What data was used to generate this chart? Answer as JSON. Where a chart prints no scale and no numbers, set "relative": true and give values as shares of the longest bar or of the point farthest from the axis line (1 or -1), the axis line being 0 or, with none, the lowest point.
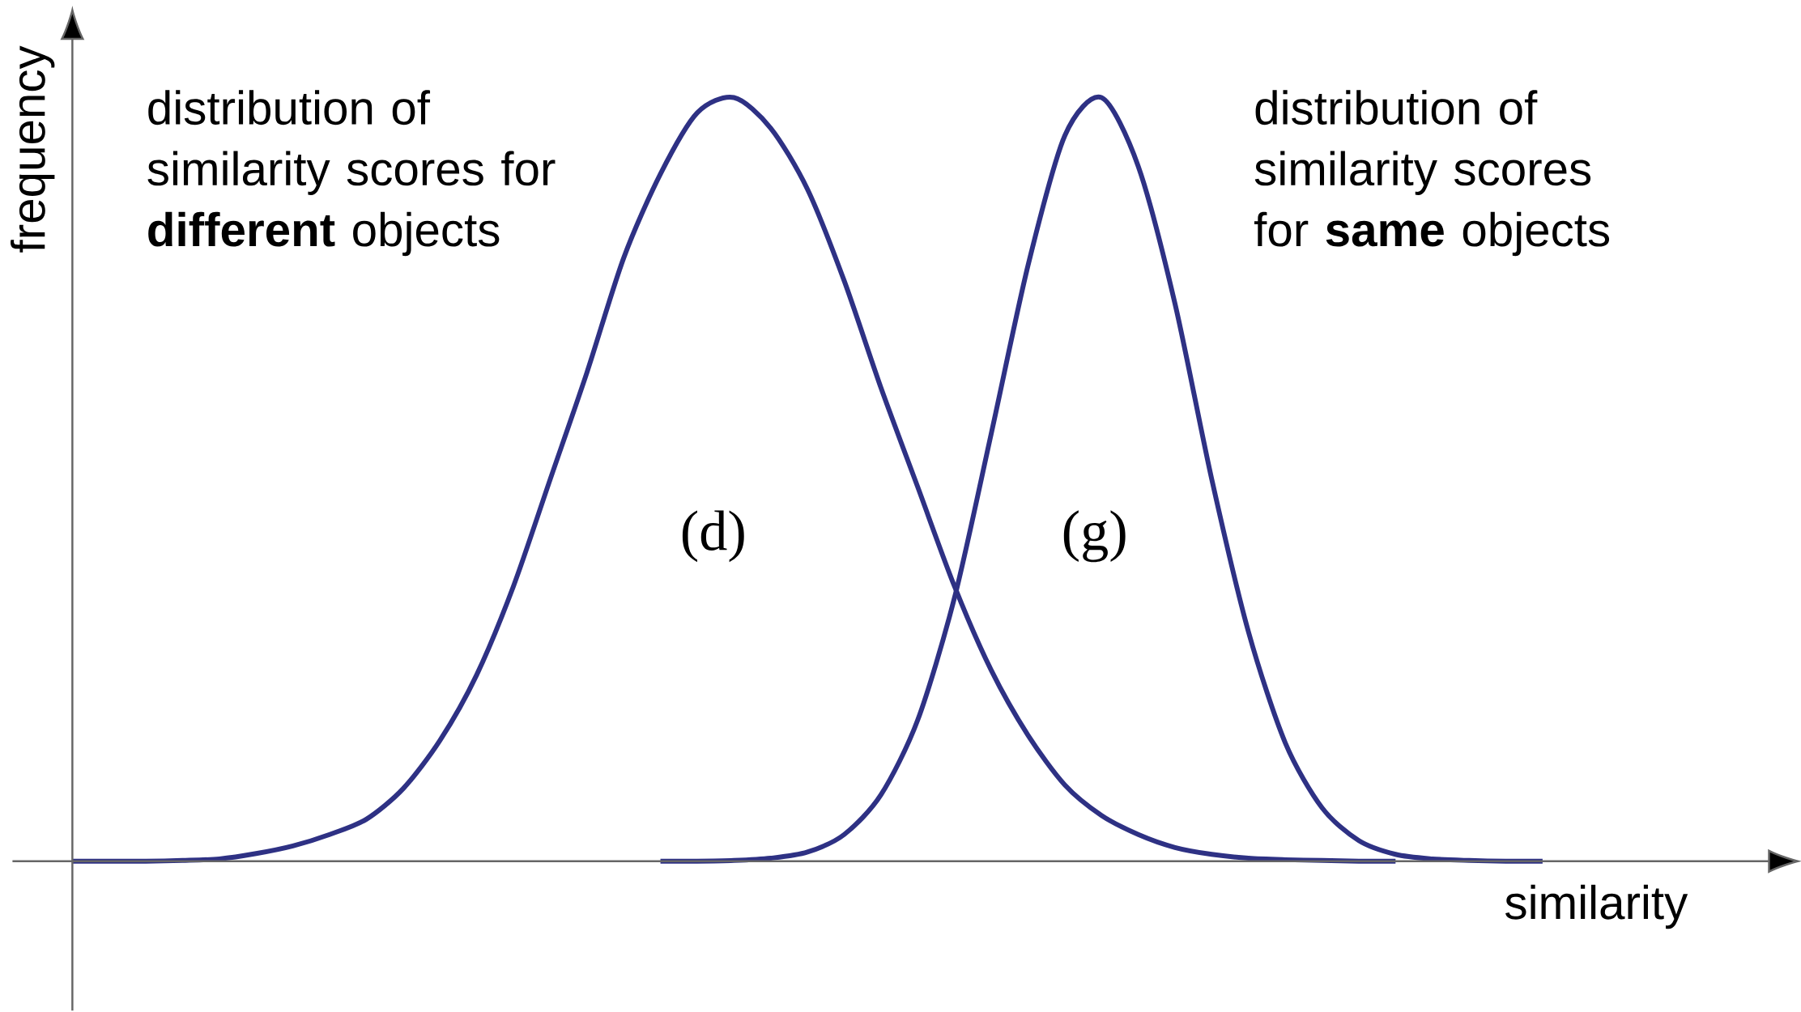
{
  "chart_data": {
    "type": "line",
    "relative": true,
    "xlabel": "similarity",
    "ylabel": "frequency",
    "legend": false,
    "categories": [
      null,
      null,
      null,
      null,
      null,
      null,
      null,
      null,
      null,
      null,
      null,
      null,
      null,
      null,
      null,
      null,
      null,
      null,
      null,
      null,
      null,
      null,
      null,
      null,
      null,
      null,
      null,
      null,
      null,
      null,
      null,
      null,
      null,
      null,
      null,
      null,
      null,
      null,
      null,
      null,
      null
    ],
    "series": [
      {
        "name": "(d)",
        "color": "#2e3184",
        "values": [
          0,
          0,
          0,
          0.001,
          0.003,
          0.01,
          0.02,
          0.035,
          0.055,
          0.095,
          0.158,
          0.244,
          0.36,
          0.5,
          0.64,
          0.79,
          0.9,
          0.98,
          1,
          0.96,
          0.88,
          0.76,
          0.62,
          0.49,
          0.36,
          0.25,
          0.165,
          0.1,
          0.06,
          0.035,
          0.018,
          0.009,
          0.004,
          0.002,
          0.001,
          0,
          0,
          null,
          null,
          null,
          null
        ]
      },
      {
        "name": "(g)",
        "color": "#2e3184",
        "values": [
          null,
          null,
          null,
          null,
          null,
          null,
          null,
          null,
          null,
          null,
          null,
          null,
          null,
          null,
          null,
          null,
          0,
          0,
          0.001,
          0.004,
          0.012,
          0.035,
          0.087,
          0.185,
          0.345,
          0.56,
          0.78,
          0.95,
          1,
          0.91,
          0.73,
          0.5,
          0.3,
          0.155,
          0.07,
          0.027,
          0.009,
          0.003,
          0.001,
          0,
          0
        ]
      }
    ],
    "annotations": [
      "distribution of similarity scores for **different** objects",
      "distribution of similarity scores for **same** objects"
    ]
  }
}
